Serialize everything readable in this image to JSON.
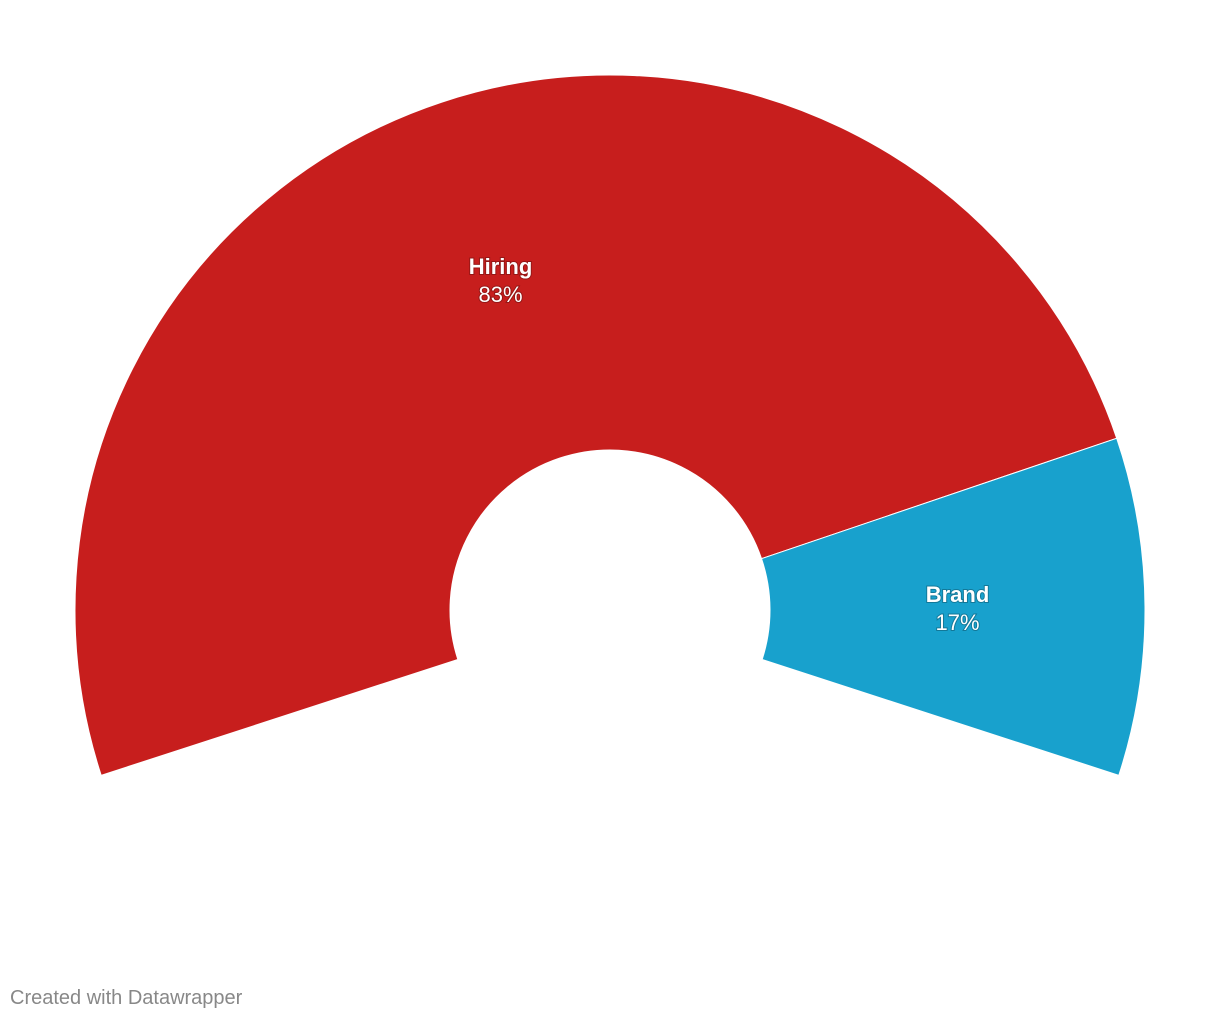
{
  "chart_data": {
    "type": "pie",
    "categories": [
      "Hiring",
      "Brand"
    ],
    "values": [
      83,
      17
    ],
    "value_labels": [
      "83%",
      "17%"
    ],
    "colors": [
      "#c71e1d",
      "#18a1cd"
    ],
    "credit": "Created with Datawrapper"
  }
}
